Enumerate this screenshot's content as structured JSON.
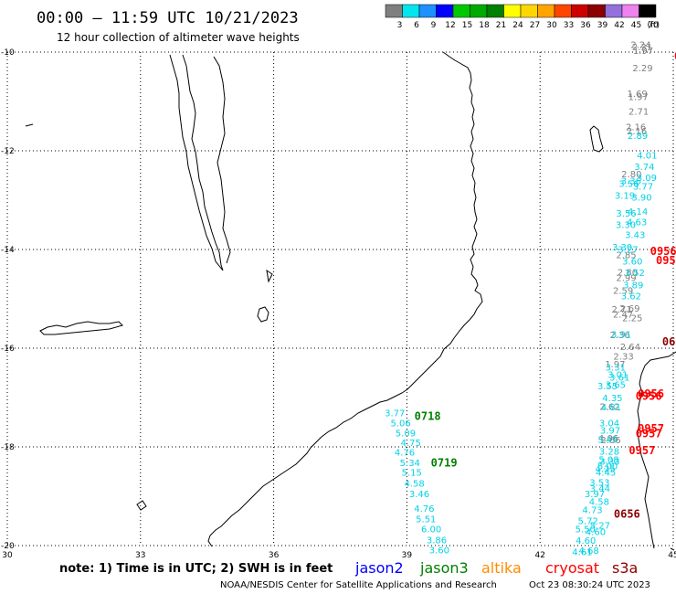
{
  "header": {
    "title": "00:00 – 11:59 UTC 10/21/2023",
    "subtitle": "12 hour collection of altimeter wave heights"
  },
  "legend": {
    "unit": "(ft)",
    "bins": [
      {
        "label": "3",
        "color": "#7f7f7f"
      },
      {
        "label": "6",
        "color": "#00e5ee"
      },
      {
        "label": "9",
        "color": "#1e90ff"
      },
      {
        "label": "12",
        "color": "#0000ff"
      },
      {
        "label": "15",
        "color": "#00c800"
      },
      {
        "label": "18",
        "color": "#00aa00"
      },
      {
        "label": "21",
        "color": "#008000"
      },
      {
        "label": "24",
        "color": "#ffff00"
      },
      {
        "label": "27",
        "color": "#ffd700"
      },
      {
        "label": "30",
        "color": "#ffa500"
      },
      {
        "label": "33",
        "color": "#ff4500"
      },
      {
        "label": "36",
        "color": "#cd0000"
      },
      {
        "label": "39",
        "color": "#8b0000"
      },
      {
        "label": "42",
        "color": "#9370db"
      },
      {
        "label": "45",
        "color": "#ee82ee"
      },
      {
        "label": "70",
        "color": "#000000"
      }
    ]
  },
  "axes": {
    "lat_labels": [
      "-10",
      "-12",
      "-14",
      "-16",
      "-18",
      "-20"
    ],
    "lon_labels": [
      "30",
      "33",
      "36",
      "39",
      "42",
      "45"
    ]
  },
  "colors": {
    "jason2": "#0000ff",
    "jason3": "#008000",
    "altika": "#ff8c00",
    "cryosat": "#ff0000",
    "s3a": "#8b0000",
    "grey": "#7f7f7f",
    "cyan": "#00d2e6"
  },
  "tracks": [
    {
      "color": "cyan",
      "points": [
        {
          "lon": 38.73,
          "lat": -17.32,
          "v": "3.77"
        },
        {
          "lon": 38.86,
          "lat": -17.53,
          "v": "5.06"
        },
        {
          "lon": 38.97,
          "lat": -17.73,
          "v": "5.09"
        },
        {
          "lon": 39.09,
          "lat": -17.93,
          "v": "4.75"
        },
        {
          "lon": 38.95,
          "lat": -18.12,
          "v": "4.76"
        },
        {
          "lon": 39.07,
          "lat": -18.33,
          "v": "5.34"
        },
        {
          "lon": 39.11,
          "lat": -18.53,
          "v": "5.15"
        },
        {
          "lon": 39.17,
          "lat": -18.75,
          "v": "4.58"
        },
        {
          "lon": 39.28,
          "lat": -18.96,
          "v": "3.46"
        },
        {
          "lon": 39.39,
          "lat": -19.26,
          "v": "4.76"
        },
        {
          "lon": 39.43,
          "lat": -19.47,
          "v": "5.51"
        },
        {
          "lon": 39.55,
          "lat": -19.68,
          "v": "6.00"
        },
        {
          "lon": 39.67,
          "lat": -19.9,
          "v": "3.86"
        },
        {
          "lon": 39.73,
          "lat": -20.1,
          "v": "3.60"
        }
      ]
    },
    {
      "color": "grey",
      "points": [
        {
          "lon": 44.27,
          "lat": -9.86,
          "v": "2.24"
        },
        {
          "lon": 44.3,
          "lat": -9.91,
          "v": "2.31"
        },
        {
          "lon": 44.32,
          "lat": -9.98,
          "v": "1.97"
        },
        {
          "lon": 44.31,
          "lat": -10.33,
          "v": "2.29"
        },
        {
          "lon": 44.19,
          "lat": -10.85,
          "v": "1.69"
        },
        {
          "lon": 44.21,
          "lat": -10.92,
          "v": "1.97"
        },
        {
          "lon": 44.22,
          "lat": -11.21,
          "v": "2.71"
        },
        {
          "lon": 44.16,
          "lat": -11.53,
          "v": "2.16"
        },
        {
          "lon": 44.18,
          "lat": -11.61,
          "v": "2.16"
        },
        {
          "lon": 44.06,
          "lat": -12.48,
          "v": "2.80"
        },
        {
          "lon": 43.94,
          "lat": -14.12,
          "v": "2.85"
        },
        {
          "lon": 43.97,
          "lat": -14.47,
          "v": "2.80"
        },
        {
          "lon": 43.94,
          "lat": -14.58,
          "v": "2.99"
        },
        {
          "lon": 43.87,
          "lat": -14.84,
          "v": "2.59"
        },
        {
          "lon": 43.84,
          "lat": -15.22,
          "v": "2.71"
        },
        {
          "lon": 44.02,
          "lat": -15.2,
          "v": "2.69"
        },
        {
          "lon": 43.87,
          "lat": -15.32,
          "v": "2.47"
        },
        {
          "lon": 44.08,
          "lat": -15.4,
          "v": "2.25"
        },
        {
          "lon": 43.8,
          "lat": -15.74,
          "v": "2.36"
        },
        {
          "lon": 44.03,
          "lat": -15.98,
          "v": "2.64"
        },
        {
          "lon": 43.88,
          "lat": -16.18,
          "v": "2.33"
        },
        {
          "lon": 43.69,
          "lat": -16.33,
          "v": "1.97"
        },
        {
          "lon": 43.57,
          "lat": -17.19,
          "v": "2.62"
        },
        {
          "lon": 43.54,
          "lat": -17.83,
          "v": "4.06"
        },
        {
          "lon": 43.59,
          "lat": -17.87,
          "v": "2.66"
        }
      ]
    },
    {
      "color": "cyan",
      "points": [
        {
          "lon": 44.2,
          "lat": -11.7,
          "v": "2.89"
        },
        {
          "lon": 44.41,
          "lat": -12.1,
          "v": "4.01"
        },
        {
          "lon": 44.35,
          "lat": -12.33,
          "v": "3.74"
        },
        {
          "lon": 44.4,
          "lat": -12.56,
          "v": "3.09"
        },
        {
          "lon": 44.05,
          "lat": -12.62,
          "v": "3.36"
        },
        {
          "lon": 44.0,
          "lat": -12.68,
          "v": "3.56"
        },
        {
          "lon": 44.32,
          "lat": -12.73,
          "v": "3.77"
        },
        {
          "lon": 44.29,
          "lat": -12.95,
          "v": "3.90"
        },
        {
          "lon": 43.91,
          "lat": -12.92,
          "v": "3.19"
        },
        {
          "lon": 43.94,
          "lat": -13.28,
          "v": "3.56"
        },
        {
          "lon": 44.2,
          "lat": -13.24,
          "v": "4.14"
        },
        {
          "lon": 44.18,
          "lat": -13.45,
          "v": "4.63"
        },
        {
          "lon": 43.93,
          "lat": -13.51,
          "v": "3.30"
        },
        {
          "lon": 44.14,
          "lat": -13.71,
          "v": "3.43"
        },
        {
          "lon": 43.85,
          "lat": -13.96,
          "v": "3.30"
        },
        {
          "lon": 43.98,
          "lat": -14.01,
          "v": "3.27"
        },
        {
          "lon": 44.08,
          "lat": -14.25,
          "v": "3.60"
        },
        {
          "lon": 44.13,
          "lat": -14.48,
          "v": "3.52"
        },
        {
          "lon": 44.1,
          "lat": -14.73,
          "v": "3.89"
        },
        {
          "lon": 44.05,
          "lat": -14.95,
          "v": "3.62"
        },
        {
          "lon": 43.83,
          "lat": -15.73,
          "v": "3.91"
        },
        {
          "lon": 43.7,
          "lat": -16.4,
          "v": "3.31"
        },
        {
          "lon": 43.75,
          "lat": -16.55,
          "v": "3.01"
        },
        {
          "lon": 43.79,
          "lat": -16.6,
          "v": "3.61"
        },
        {
          "lon": 43.7,
          "lat": -16.75,
          "v": "3.65"
        },
        {
          "lon": 43.52,
          "lat": -16.78,
          "v": "3.55"
        },
        {
          "lon": 43.63,
          "lat": -17.02,
          "v": "4.35"
        },
        {
          "lon": 43.6,
          "lat": -17.2,
          "v": "4.81"
        },
        {
          "lon": 43.56,
          "lat": -17.53,
          "v": "3.04"
        },
        {
          "lon": 43.58,
          "lat": -17.68,
          "v": "3.97"
        },
        {
          "lon": 43.52,
          "lat": -17.86,
          "v": "3.45"
        },
        {
          "lon": 43.56,
          "lat": -18.1,
          "v": "3.28"
        },
        {
          "lon": 43.57,
          "lat": -18.31,
          "v": "3.33"
        },
        {
          "lon": 43.55,
          "lat": -18.27,
          "v": "5.08"
        },
        {
          "lon": 43.52,
          "lat": -18.4,
          "v": "5.00"
        },
        {
          "lon": 43.47,
          "lat": -18.45,
          "v": "4.25"
        },
        {
          "lon": 43.48,
          "lat": -18.53,
          "v": "4.45"
        },
        {
          "lon": 43.34,
          "lat": -18.73,
          "v": "3.53"
        },
        {
          "lon": 43.35,
          "lat": -18.85,
          "v": "3.44"
        },
        {
          "lon": 43.23,
          "lat": -18.96,
          "v": "3.97"
        },
        {
          "lon": 43.33,
          "lat": -19.12,
          "v": "4.58"
        },
        {
          "lon": 43.18,
          "lat": -19.29,
          "v": "4.73"
        },
        {
          "lon": 43.08,
          "lat": -19.51,
          "v": "5.72"
        },
        {
          "lon": 43.35,
          "lat": -19.6,
          "v": "5.27"
        },
        {
          "lon": 43.02,
          "lat": -19.68,
          "v": "5.50"
        },
        {
          "lon": 43.25,
          "lat": -19.73,
          "v": "4.60"
        },
        {
          "lon": 43.03,
          "lat": -19.91,
          "v": "4.60"
        },
        {
          "lon": 43.1,
          "lat": -20.11,
          "v": "4.68"
        },
        {
          "lon": 42.95,
          "lat": -20.14,
          "v": "4.61"
        }
      ]
    }
  ],
  "time_labels": [
    {
      "lon": 39.17,
      "lat": -17.38,
      "v": "0718",
      "color": "jason3"
    },
    {
      "lon": 39.54,
      "lat": -18.32,
      "v": "0719",
      "color": "jason3"
    },
    {
      "lon": 45.02,
      "lat": -10.08,
      "v": "0",
      "color": "cryosat"
    },
    {
      "lon": 44.48,
      "lat": -14.04,
      "v": "0956",
      "color": "cryosat"
    },
    {
      "lon": 44.61,
      "lat": -14.22,
      "v": "0956",
      "color": "cryosat"
    },
    {
      "lon": 44.75,
      "lat": -15.87,
      "v": "065",
      "color": "s3a"
    },
    {
      "lon": 44.2,
      "lat": -16.93,
      "v": "0956",
      "color": "cryosat"
    },
    {
      "lon": 44.15,
      "lat": -16.97,
      "v": "0956",
      "color": "cryosat"
    },
    {
      "lon": 44.2,
      "lat": -17.63,
      "v": "0957",
      "color": "cryosat"
    },
    {
      "lon": 44.15,
      "lat": -17.73,
      "v": "0957",
      "color": "cryosat"
    },
    {
      "lon": 44.0,
      "lat": -18.07,
      "v": "0957",
      "color": "cryosat"
    },
    {
      "lon": 43.66,
      "lat": -19.36,
      "v": "0656",
      "color": "s3a"
    }
  ],
  "footer": {
    "note": "note:  1) Time is in UTC; 2) SWH is in feet",
    "credit": "NOAA/NESDIS Center for Satellite Applications and Research",
    "timestamp": "Oct 23 08:30:24 UTC 2023",
    "satellites": [
      {
        "name": "jason2",
        "color": "jason2"
      },
      {
        "name": "jason3",
        "color": "jason3"
      },
      {
        "name": "altika",
        "color": "altika"
      },
      {
        "name": "cryosat",
        "color": "cryosat"
      },
      {
        "name": "s3a",
        "color": "s3a"
      }
    ]
  }
}
